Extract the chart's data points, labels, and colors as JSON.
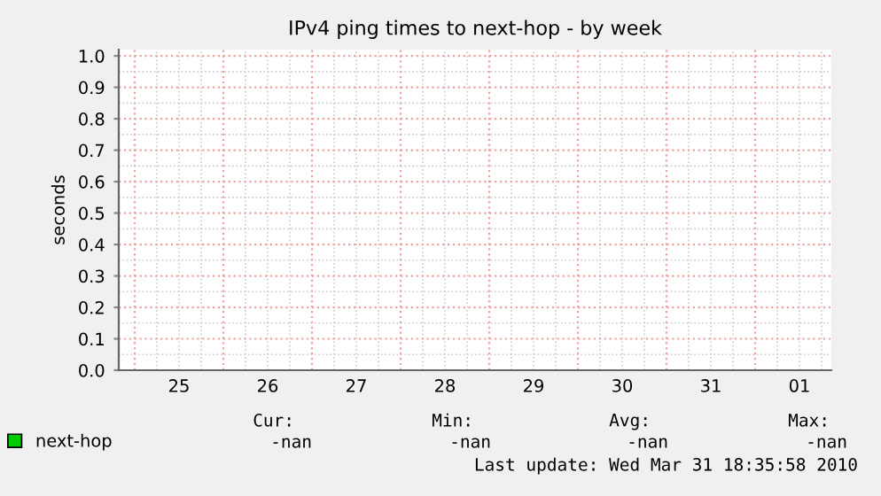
{
  "chart_data": {
    "type": "line",
    "title": "IPv4 ping times to next-hop - by week",
    "ylabel": "seconds",
    "categories": [
      "25",
      "26",
      "27",
      "28",
      "29",
      "30",
      "31",
      "01"
    ],
    "series": [
      {
        "name": "next-hop",
        "color": "#00cc00",
        "values": [
          null,
          null,
          null,
          null,
          null,
          null,
          null,
          null
        ]
      }
    ],
    "ylim": [
      0,
      1.02
    ],
    "yticks": [
      {
        "value": 0,
        "label": "0.0"
      },
      0.1,
      0.2,
      0.3,
      0.4,
      0.5,
      0.6,
      0.7,
      0.8,
      0.9,
      {
        "value": 1,
        "label": "1.0"
      }
    ],
    "grid": true,
    "legend": "bottom left",
    "annotations": [
      "Cur:",
      "Min:",
      "Avg:",
      "Max:",
      "-nan",
      "-nan",
      "-nan",
      "-nan",
      "Last update: Wed Mar 31 18:35:58 2010"
    ]
  }
}
